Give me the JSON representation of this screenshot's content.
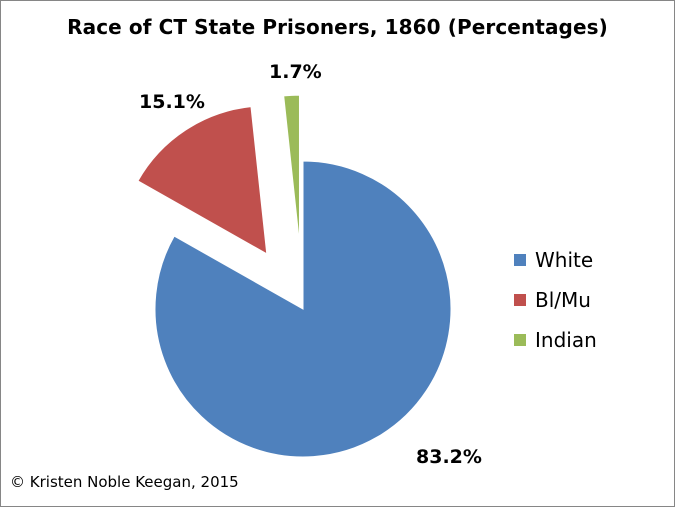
{
  "chart_data": {
    "type": "pie",
    "title": "Race of CT State Prisoners, 1860 (Percentages)",
    "categories": [
      "White",
      "Bl/Mu",
      "Indian"
    ],
    "values": [
      83.2,
      15.1,
      1.7
    ],
    "data_labels": [
      "83.2%",
      "15.1%",
      "1.7%"
    ],
    "colors": [
      "#4f81bd",
      "#c0504d",
      "#9bbb59"
    ],
    "exploded": [
      "Bl/Mu",
      "Indian"
    ],
    "legend_position": "right"
  },
  "footer": {
    "credit": "© Kristen Noble Keegan, 2015"
  }
}
